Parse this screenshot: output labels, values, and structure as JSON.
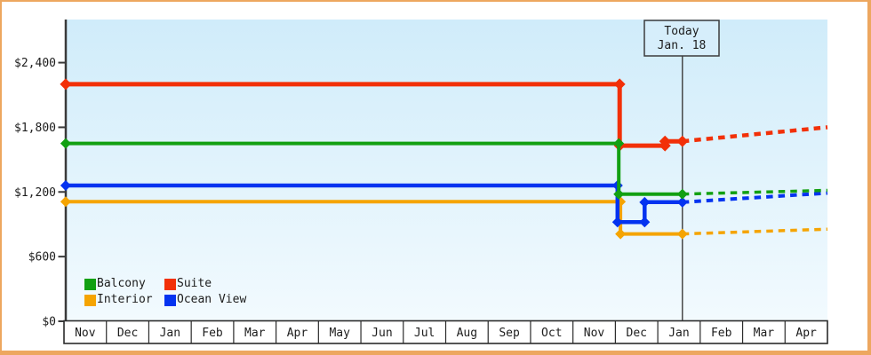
{
  "window": {
    "kind": "cruise cabin price history chart"
  },
  "colors": {
    "frame_border": "#eda75f",
    "plot_bg_top": "#d0ecfa",
    "plot_bg_bottom": "#f2fafe",
    "axis": "#3a3a3a",
    "grid_box": "#2b2b2b",
    "text": "#1c1c1c",
    "today_line": "#3c3c3c",
    "today_box_fill": "#d6eefb"
  },
  "today_box": {
    "line1": "Today",
    "line2": "Jan. 18"
  },
  "chart_data": {
    "type": "line",
    "title": "",
    "xlabel": "",
    "ylabel": "",
    "x_unit": "months, index 0 = first Nov through index 18 = end of last Apr",
    "months": [
      "Nov",
      "Dec",
      "Jan",
      "Feb",
      "Mar",
      "Apr",
      "May",
      "Jun",
      "Jul",
      "Aug",
      "Sep",
      "Oct",
      "Nov",
      "Dec",
      "Jan",
      "Feb",
      "Mar",
      "Apr"
    ],
    "y_ticks": [
      {
        "label": "$2,400",
        "value": 2400
      },
      {
        "label": "$1,800",
        "value": 1800
      },
      {
        "label": "$1,200",
        "value": 1200
      },
      {
        "label": "$600",
        "value": 600
      },
      {
        "label": "$0",
        "value": 0
      }
    ],
    "ylim": [
      0,
      2800
    ],
    "grid": false,
    "legend_position": "bottom-left inside plot",
    "today": {
      "t": 14.58,
      "label": "Jan. 18"
    },
    "series": [
      {
        "id": "suite",
        "name": "Suite",
        "color": "#f23008",
        "stroke_width": 5,
        "marker": "diamond",
        "start_price": 2200,
        "today_price": 1670,
        "forecast_end_price": 1800,
        "history": [
          [
            0.04,
            2200
          ],
          [
            13.1,
            2200
          ],
          [
            13.1,
            1630
          ],
          [
            14.17,
            1630
          ],
          [
            14.17,
            1670
          ],
          [
            14.58,
            1670
          ]
        ],
        "forecast": [
          [
            14.58,
            1670
          ],
          [
            18.0,
            1800
          ]
        ]
      },
      {
        "id": "interior",
        "name": "Interior",
        "color": "#f5a402",
        "stroke_width": 4,
        "marker": "diamond",
        "start_price": 1110,
        "today_price": 810,
        "forecast_end_price": 855,
        "history": [
          [
            0.04,
            1110
          ],
          [
            13.12,
            1110
          ],
          [
            13.12,
            810
          ],
          [
            14.58,
            810
          ]
        ],
        "forecast": [
          [
            14.58,
            810
          ],
          [
            18.0,
            855
          ]
        ]
      },
      {
        "id": "ocean-view",
        "name": "Ocean View",
        "color": "#0433f0",
        "stroke_width": 4.5,
        "marker": "diamond",
        "start_price": 1260,
        "today_price": 1105,
        "forecast_end_price": 1190,
        "history": [
          [
            0.04,
            1260
          ],
          [
            13.05,
            1260
          ],
          [
            13.05,
            920
          ],
          [
            13.69,
            920
          ],
          [
            13.69,
            1105
          ],
          [
            14.58,
            1105
          ]
        ],
        "forecast": [
          [
            14.58,
            1105
          ],
          [
            18.0,
            1190
          ]
        ]
      },
      {
        "id": "balcony",
        "name": "Balcony",
        "color": "#12a012",
        "stroke_width": 4,
        "marker": "diamond",
        "start_price": 1650,
        "today_price": 1180,
        "forecast_end_price": 1215,
        "history": [
          [
            0.04,
            1650
          ],
          [
            13.08,
            1650
          ],
          [
            13.08,
            1180
          ],
          [
            14.58,
            1180
          ]
        ],
        "forecast": [
          [
            14.58,
            1180
          ],
          [
            18.0,
            1215
          ]
        ]
      }
    ],
    "legend": [
      {
        "label": "Balcony",
        "color": "#12a012"
      },
      {
        "label": "Suite",
        "color": "#f23008"
      },
      {
        "label": "Interior",
        "color": "#f5a402"
      },
      {
        "label": "Ocean View",
        "color": "#0433f0"
      }
    ]
  }
}
